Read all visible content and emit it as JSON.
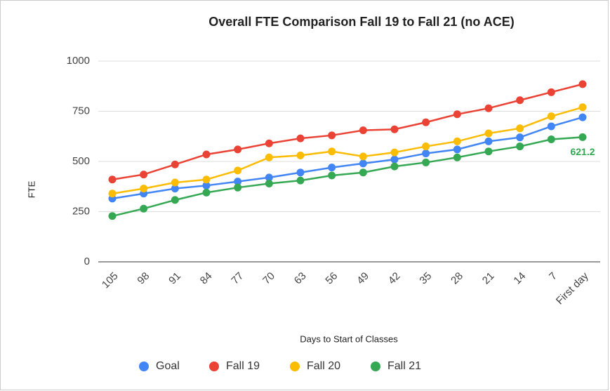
{
  "chart_data": {
    "type": "line",
    "title": "Overall FTE Comparison Fall 19 to Fall 21 (no ACE)",
    "x_label": "Days to Start of Classes",
    "y_label": "FTE",
    "categories": [
      "105",
      "98",
      "91",
      "84",
      "77",
      "70",
      "63",
      "56",
      "49",
      "42",
      "35",
      "28",
      "21",
      "14",
      "7",
      "First day"
    ],
    "series": [
      {
        "name": "Goal",
        "color": "#4285f4",
        "values": [
          315,
          340,
          365,
          380,
          400,
          420,
          445,
          470,
          490,
          510,
          540,
          560,
          600,
          620,
          675,
          720
        ]
      },
      {
        "name": "Fall 19",
        "color": "#ea4335",
        "values": [
          410,
          435,
          485,
          535,
          560,
          590,
          615,
          630,
          655,
          660,
          695,
          735,
          765,
          805,
          845,
          885
        ]
      },
      {
        "name": "Fall 20",
        "color": "#fbbc04",
        "values": [
          340,
          365,
          395,
          410,
          455,
          520,
          530,
          550,
          525,
          545,
          575,
          600,
          640,
          665,
          725,
          770
        ]
      },
      {
        "name": "Fall 21",
        "color": "#34a853",
        "values": [
          228,
          265,
          308,
          345,
          370,
          390,
          405,
          430,
          445,
          475,
          495,
          520,
          550,
          575,
          610,
          621.2
        ],
        "value_labels": [
          null,
          null,
          null,
          null,
          null,
          null,
          null,
          null,
          null,
          null,
          null,
          null,
          null,
          null,
          null,
          "621.2"
        ]
      }
    ],
    "ylim": [
      0,
      1000
    ],
    "yticks": [
      0,
      250,
      500,
      750,
      1000
    ],
    "grid": true,
    "legend": "bottom"
  }
}
